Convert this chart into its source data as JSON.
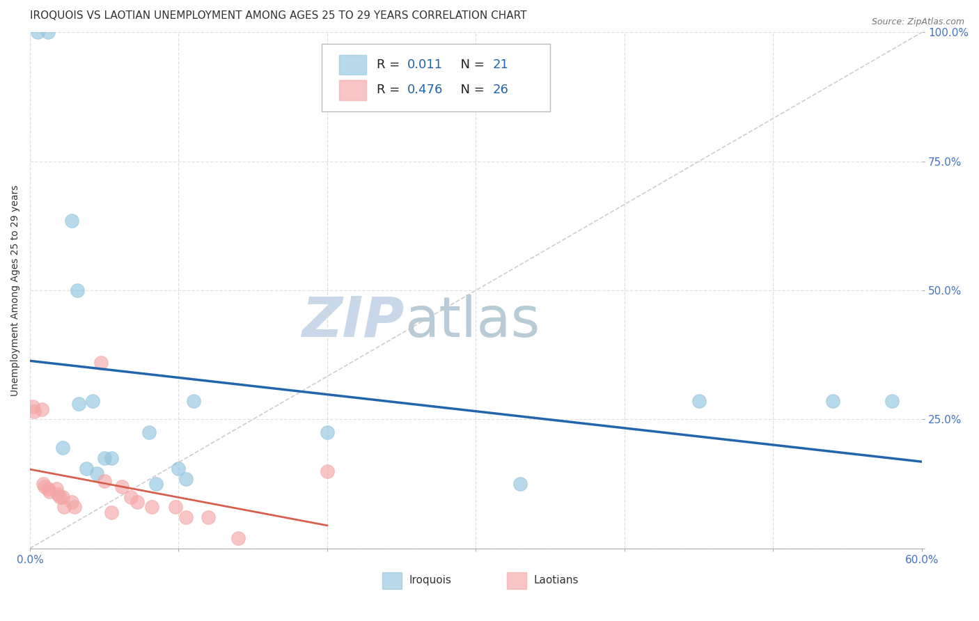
{
  "title": "IROQUOIS VS LAOTIAN UNEMPLOYMENT AMONG AGES 25 TO 29 YEARS CORRELATION CHART",
  "source": "Source: ZipAtlas.com",
  "ylabel": "Unemployment Among Ages 25 to 29 years",
  "xlim": [
    0.0,
    0.6
  ],
  "ylim": [
    0.0,
    1.0
  ],
  "xtick_positions": [
    0.0,
    0.1,
    0.2,
    0.3,
    0.4,
    0.5,
    0.6
  ],
  "ytick_positions": [
    0.0,
    0.25,
    0.5,
    0.75,
    1.0
  ],
  "xticklabels_show": {
    "0.0": "0.0%",
    "0.6": "60.0%"
  },
  "yticklabels": [
    "",
    "25.0%",
    "50.0%",
    "75.0%",
    "100.0%"
  ],
  "iroquois_color": "#92c5de",
  "laotian_color": "#f4a6a6",
  "trend_iroquois_color": "#2166ac",
  "trend_laotian_color": "#d6604d",
  "diagonal_color": "#c8c8c8",
  "watermark_zip_color": "#c8d8e8",
  "watermark_atlas_color": "#b8ccd8",
  "grid_color": "#d8d8d8",
  "background_color": "#ffffff",
  "tick_color": "#4472c4",
  "iroquois_x": [
    0.005,
    0.012,
    0.022,
    0.028,
    0.032,
    0.033,
    0.038,
    0.042,
    0.045,
    0.05,
    0.055,
    0.08,
    0.085,
    0.1,
    0.105,
    0.11,
    0.2,
    0.33,
    0.45,
    0.54,
    0.58
  ],
  "iroquois_y": [
    1.0,
    1.0,
    0.195,
    0.635,
    0.5,
    0.28,
    0.155,
    0.285,
    0.145,
    0.175,
    0.175,
    0.225,
    0.125,
    0.155,
    0.135,
    0.285,
    0.225,
    0.125,
    0.285,
    0.285,
    0.285
  ],
  "laotian_x": [
    0.002,
    0.003,
    0.008,
    0.009,
    0.01,
    0.012,
    0.013,
    0.018,
    0.019,
    0.02,
    0.022,
    0.023,
    0.028,
    0.03,
    0.048,
    0.05,
    0.055,
    0.062,
    0.068,
    0.072,
    0.082,
    0.098,
    0.105,
    0.12,
    0.14,
    0.2
  ],
  "laotian_y": [
    0.275,
    0.265,
    0.27,
    0.125,
    0.12,
    0.115,
    0.11,
    0.115,
    0.105,
    0.1,
    0.1,
    0.08,
    0.09,
    0.08,
    0.36,
    0.13,
    0.07,
    0.12,
    0.1,
    0.09,
    0.08,
    0.08,
    0.06,
    0.06,
    0.02,
    0.15
  ],
  "legend_r_iroquois": "0.011",
  "legend_n_iroquois": "21",
  "legend_r_laotian": "0.476",
  "legend_n_laotian": "26",
  "title_fontsize": 11,
  "source_fontsize": 9,
  "axis_label_fontsize": 10,
  "tick_fontsize": 11,
  "legend_fontsize": 13,
  "watermark_fontsize": 58
}
